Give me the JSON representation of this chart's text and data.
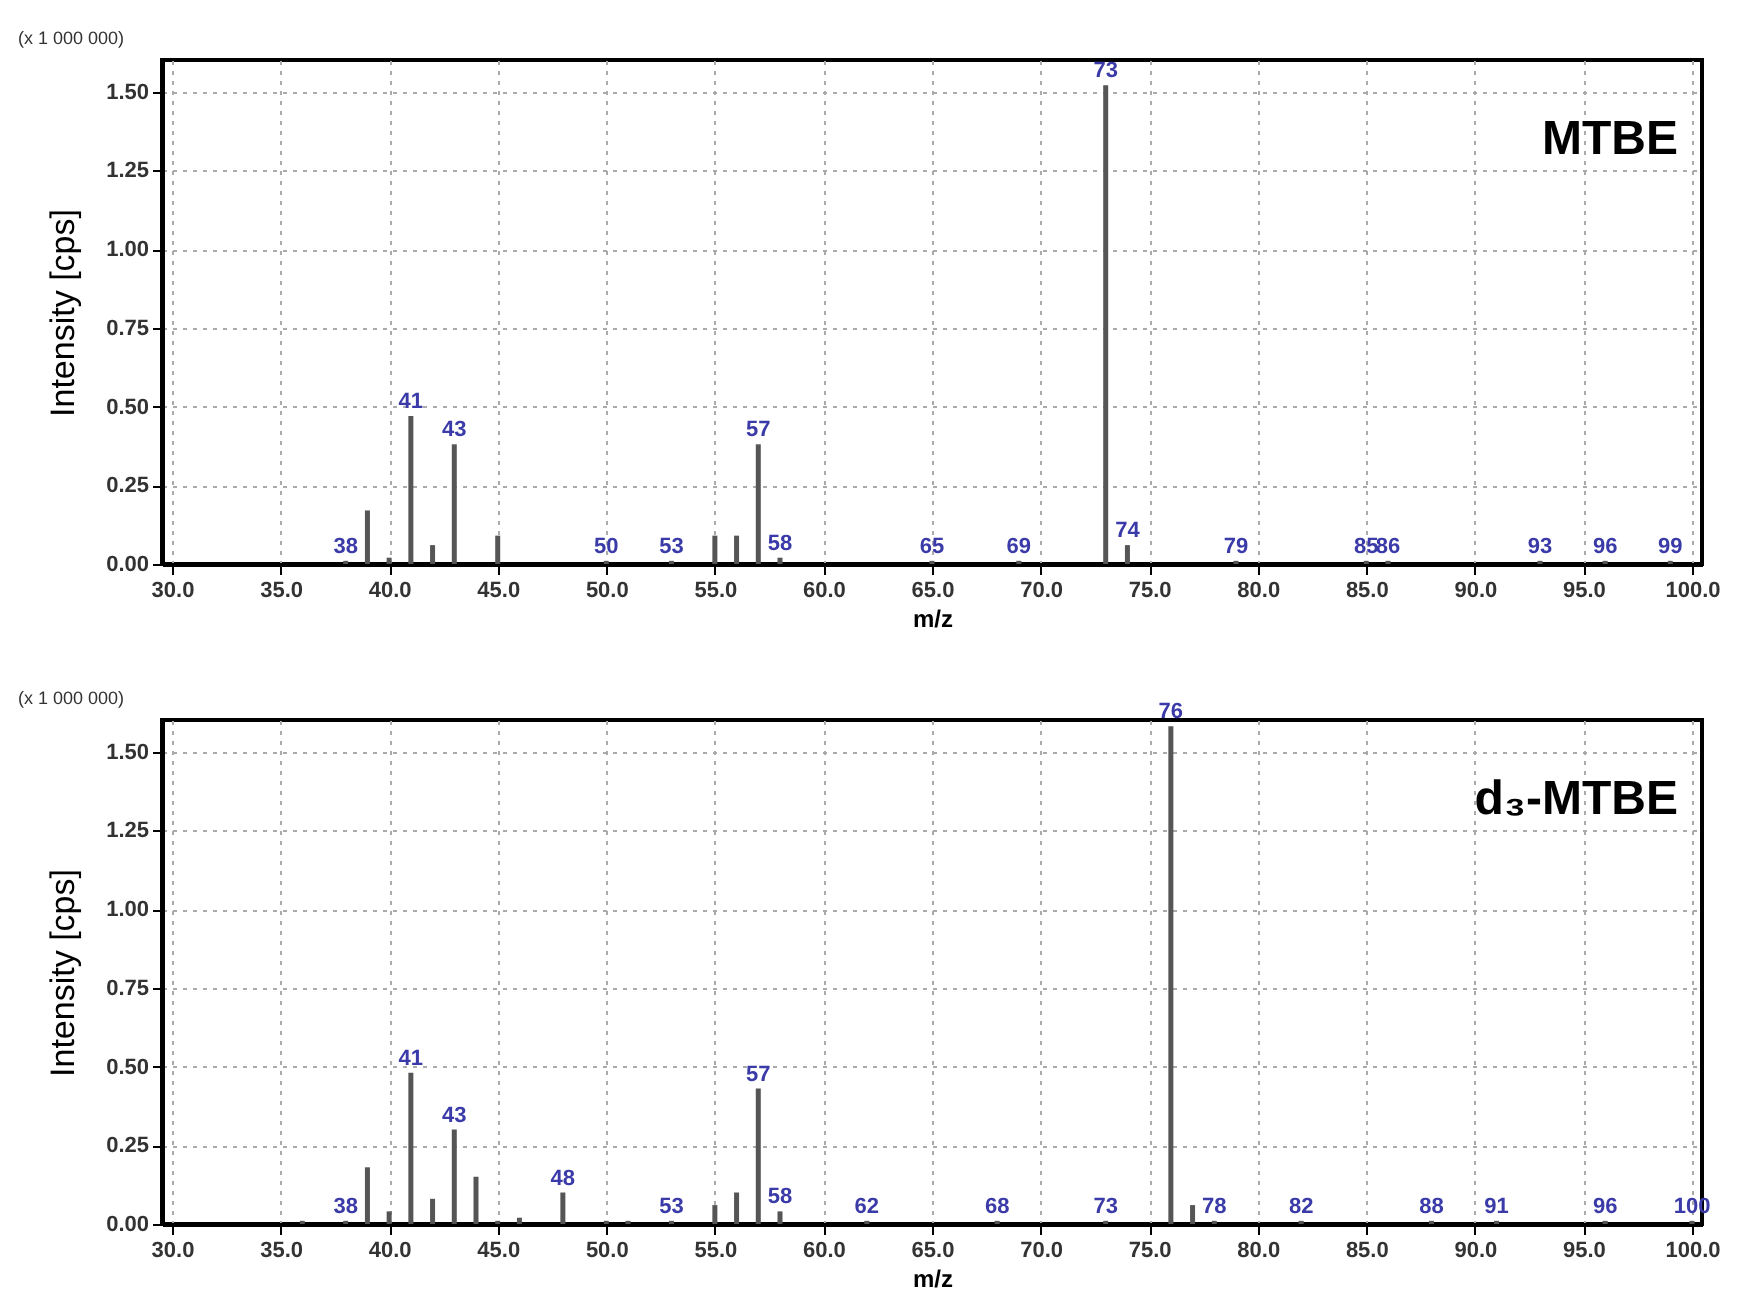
{
  "chart_data": [
    {
      "type": "bar",
      "title": "MTBE",
      "xlabel": "m/z",
      "ylabel": "Intensity [cps]",
      "x": [
        38,
        39,
        40,
        41,
        42,
        43,
        45,
        50,
        53,
        55,
        56,
        57,
        58,
        65,
        69,
        73,
        74,
        79,
        85,
        86,
        93,
        96,
        99
      ],
      "values": [
        0.01,
        0.17,
        0.02,
        0.47,
        0.06,
        0.38,
        0.09,
        0.01,
        0.01,
        0.09,
        0.09,
        0.38,
        0.02,
        0.01,
        0.01,
        1.52,
        0.06,
        0.01,
        0.01,
        0.01,
        0.01,
        0.01,
        0.01
      ],
      "color": "#555555",
      "annotations": [
        "(x 1 000 000)",
        {
          "text": "38",
          "x": 38,
          "y": 0.01
        },
        {
          "text": "41",
          "x": 41,
          "y": 0.47
        },
        {
          "text": "43",
          "x": 43,
          "y": 0.38
        },
        {
          "text": "50",
          "x": 50,
          "y": 0.01
        },
        {
          "text": "53",
          "x": 53,
          "y": 0.01
        },
        {
          "text": "57",
          "x": 57,
          "y": 0.38
        },
        {
          "text": "58",
          "x": 58,
          "y": 0.02
        },
        {
          "text": "65",
          "x": 65,
          "y": 0.01
        },
        {
          "text": "69",
          "x": 69,
          "y": 0.01
        },
        {
          "text": "73",
          "x": 73,
          "y": 1.52
        },
        {
          "text": "74",
          "x": 74,
          "y": 0.06
        },
        {
          "text": "79",
          "x": 79,
          "y": 0.01
        },
        {
          "text": "85",
          "x": 85,
          "y": 0.01
        },
        {
          "text": "86",
          "x": 86,
          "y": 0.01
        },
        {
          "text": "93",
          "x": 93,
          "y": 0.01
        },
        {
          "text": "96",
          "x": 96,
          "y": 0.01
        },
        {
          "text": "99",
          "x": 99,
          "y": 0.01
        }
      ],
      "xlim": [
        30,
        100
      ],
      "ylim": [
        0,
        1.6
      ],
      "xticks": [
        {
          "value": 30,
          "label": "30.0"
        },
        {
          "value": 35,
          "label": "35.0"
        },
        {
          "value": 40,
          "label": "40.0"
        },
        {
          "value": 45,
          "label": "45.0"
        },
        {
          "value": 50,
          "label": "50.0"
        },
        {
          "value": 55,
          "label": "55.0"
        },
        {
          "value": 60,
          "label": "60.0"
        },
        {
          "value": 65,
          "label": "65.0"
        },
        {
          "value": 70,
          "label": "70.0"
        },
        {
          "value": 75,
          "label": "75.0"
        },
        {
          "value": 80,
          "label": "80.0"
        },
        {
          "value": 85,
          "label": "85.0"
        },
        {
          "value": 90,
          "label": "90.0"
        },
        {
          "value": 95,
          "label": "95.0"
        },
        {
          "value": 100,
          "label": "100.0"
        }
      ],
      "yticks": [
        {
          "value": 0,
          "label": "0.00"
        },
        {
          "value": 0.25,
          "label": "0.25"
        },
        {
          "value": 0.5,
          "label": "0.50"
        },
        {
          "value": 0.75,
          "label": "0.75"
        },
        {
          "value": 1,
          "label": "1.00"
        },
        {
          "value": 1.25,
          "label": "1.25"
        },
        {
          "value": 1.5,
          "label": "1.50"
        }
      ],
      "grid": true
    },
    {
      "type": "bar",
      "title": "d₃-MTBE",
      "xlabel": "m/z",
      "ylabel": "Intensity [cps]",
      "x": [
        36,
        38,
        39,
        40,
        41,
        42,
        43,
        44,
        45,
        46,
        48,
        50,
        51,
        53,
        55,
        56,
        57,
        58,
        62,
        68,
        73,
        76,
        77,
        78,
        82,
        88,
        91,
        96,
        100
      ],
      "values": [
        0.01,
        0.01,
        0.18,
        0.04,
        0.48,
        0.08,
        0.3,
        0.15,
        0.01,
        0.02,
        0.1,
        0.01,
        0.01,
        0.01,
        0.06,
        0.1,
        0.43,
        0.04,
        0.01,
        0.01,
        0.01,
        1.58,
        0.06,
        0.01,
        0.01,
        0.01,
        0.01,
        0.01,
        0.01
      ],
      "color": "#555555",
      "annotations": [
        "(x 1 000 000)",
        {
          "text": "38",
          "x": 38,
          "y": 0.01
        },
        {
          "text": "41",
          "x": 41,
          "y": 0.48
        },
        {
          "text": "43",
          "x": 43,
          "y": 0.3
        },
        {
          "text": "48",
          "x": 48,
          "y": 0.1
        },
        {
          "text": "53",
          "x": 53,
          "y": 0.01
        },
        {
          "text": "57",
          "x": 57,
          "y": 0.43
        },
        {
          "text": "58",
          "x": 58,
          "y": 0.04
        },
        {
          "text": "62",
          "x": 62,
          "y": 0.01
        },
        {
          "text": "68",
          "x": 68,
          "y": 0.01
        },
        {
          "text": "73",
          "x": 73,
          "y": 0.01
        },
        {
          "text": "76",
          "x": 76,
          "y": 1.58
        },
        {
          "text": "78",
          "x": 78,
          "y": 0.01
        },
        {
          "text": "82",
          "x": 82,
          "y": 0.01
        },
        {
          "text": "88",
          "x": 88,
          "y": 0.01
        },
        {
          "text": "91",
          "x": 91,
          "y": 0.01
        },
        {
          "text": "96",
          "x": 96,
          "y": 0.01
        },
        {
          "text": "100",
          "x": 100,
          "y": 0.01
        }
      ],
      "xlim": [
        30,
        100
      ],
      "ylim": [
        0,
        1.6
      ],
      "xticks": [
        {
          "value": 30,
          "label": "30.0"
        },
        {
          "value": 35,
          "label": "35.0"
        },
        {
          "value": 40,
          "label": "40.0"
        },
        {
          "value": 45,
          "label": "45.0"
        },
        {
          "value": 50,
          "label": "50.0"
        },
        {
          "value": 55,
          "label": "55.0"
        },
        {
          "value": 60,
          "label": "60.0"
        },
        {
          "value": 65,
          "label": "65.0"
        },
        {
          "value": 70,
          "label": "70.0"
        },
        {
          "value": 75,
          "label": "75.0"
        },
        {
          "value": 80,
          "label": "80.0"
        },
        {
          "value": 85,
          "label": "85.0"
        },
        {
          "value": 90,
          "label": "90.0"
        },
        {
          "value": 95,
          "label": "95.0"
        },
        {
          "value": 100,
          "label": "100.0"
        }
      ],
      "yticks": [
        {
          "value": 0,
          "label": "0.00"
        },
        {
          "value": 0.25,
          "label": "0.25"
        },
        {
          "value": 0.5,
          "label": "0.50"
        },
        {
          "value": 0.75,
          "label": "0.75"
        },
        {
          "value": 1,
          "label": "1.00"
        },
        {
          "value": 1.25,
          "label": "1.25"
        },
        {
          "value": 1.5,
          "label": "1.50"
        }
      ],
      "grid": true
    }
  ]
}
